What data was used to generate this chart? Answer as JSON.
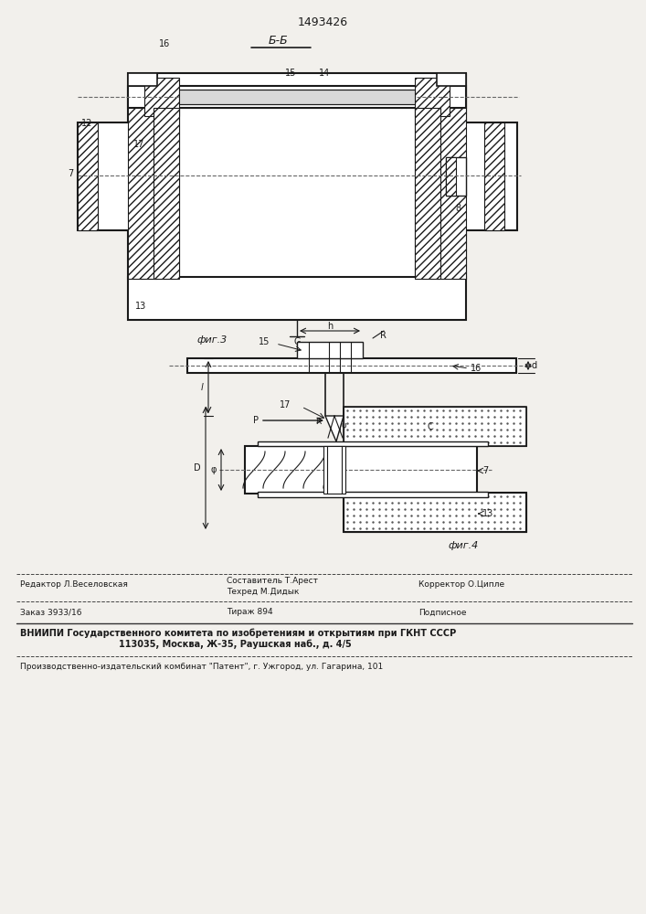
{
  "patent_number": "1493426",
  "bg_color": "#f2f0ec",
  "line_color": "#1a1a1a",
  "fig3_label": "фиг.3",
  "fig4_label": "фиг.4",
  "section_label": "Б-Б",
  "footer": {
    "editor": "Редактор Л.Веселовская",
    "compiler_label": "Составитель Т.Арест",
    "tech_label": "Техред М.Дидык",
    "corrector": "Корректор О.Ципле",
    "order": "Заказ 3933/16",
    "print_run": "Тираж 894",
    "subscription": "Подписное",
    "vniiipi": "ВНИИПИ Государственного комитета по изобретениям и открытиям при ГКНТ СССР",
    "address": "113035, Москва, Ж-35, Раушская наб., д. 4/5",
    "production": "Производственно-издательский комбинат \"Патент\", г. Ужгород, ул. Гагарина, 101"
  }
}
